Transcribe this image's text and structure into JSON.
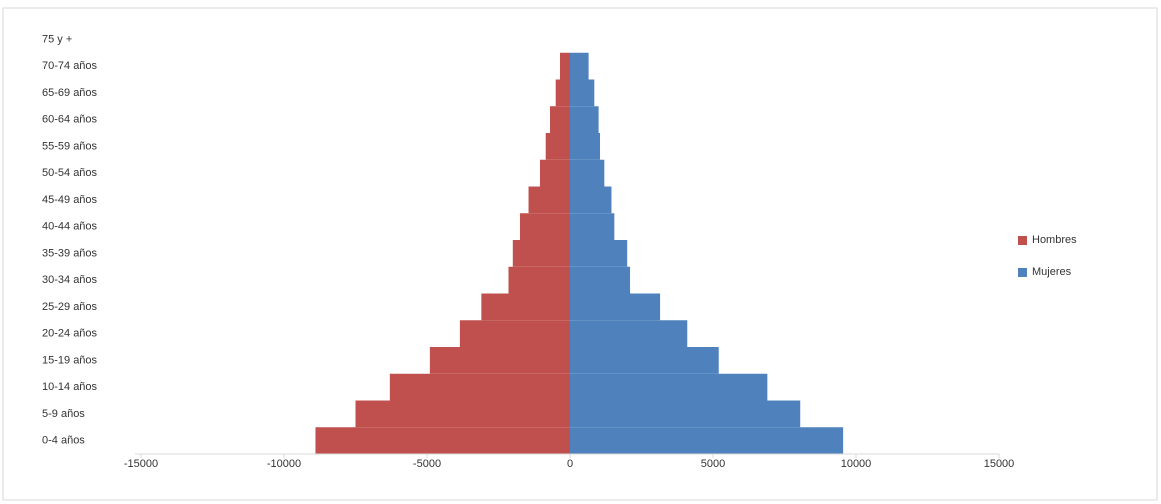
{
  "chart_data": {
    "type": "pyramid",
    "categories": [
      "0-4 años",
      "5-9 años",
      "10-14 años",
      "15-19 años",
      "20-24 años",
      "25-29 años",
      "30-34 años",
      "35-39 años",
      "40-44 años",
      "45-49 años",
      "50-54 años",
      "55-59 años",
      "60-64 años",
      "65-69 años",
      "70-74 años",
      "75 y +"
    ],
    "series": [
      {
        "name": "Hombres",
        "color": "#c0504d",
        "values": [
          -8900,
          -7500,
          -6300,
          -4900,
          -3850,
          -3100,
          -2150,
          -2000,
          -1750,
          -1450,
          -1050,
          -850,
          -700,
          -500,
          -350,
          0
        ]
      },
      {
        "name": "Mujeres",
        "color": "#4f81bd",
        "values": [
          9550,
          8050,
          6900,
          5200,
          4100,
          3150,
          2100,
          2000,
          1550,
          1450,
          1200,
          1050,
          1000,
          850,
          650,
          0
        ]
      }
    ],
    "xlim": [
      -15000,
      15000
    ],
    "xticks": [
      -15000,
      -10000,
      -5000,
      0,
      5000,
      10000,
      15000
    ],
    "legend": "right"
  }
}
